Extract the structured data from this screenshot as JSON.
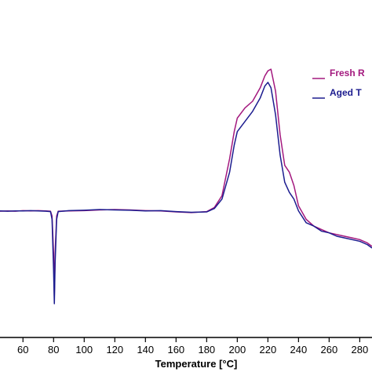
{
  "chart_data": {
    "type": "line",
    "x_label": "Temperature [°C]",
    "x": [
      45,
      50,
      55,
      60,
      65,
      70,
      75,
      78,
      79,
      80,
      80.5,
      81,
      82,
      83,
      90,
      100,
      110,
      120,
      130,
      140,
      150,
      160,
      170,
      180,
      185,
      190,
      195,
      198,
      200,
      205,
      210,
      215,
      218,
      220,
      222,
      225,
      228,
      231,
      234,
      237,
      240,
      245,
      250,
      255,
      260,
      265,
      270,
      275,
      280,
      285,
      288
    ],
    "series": [
      {
        "name": "Fresh R",
        "color": "#a3187e",
        "values": [
          37.4,
          37.5,
          37.4,
          37.6,
          37.5,
          37.6,
          37.5,
          37.4,
          36,
          25,
          12,
          25,
          36,
          37.4,
          37.5,
          37.6,
          37.8,
          37.9,
          37.8,
          37.6,
          37.5,
          37.2,
          37.0,
          37.3,
          38.5,
          42,
          53,
          61,
          65,
          68,
          70,
          74,
          77.5,
          79,
          79.5,
          73,
          60,
          51,
          49,
          45,
          39,
          35,
          33,
          32,
          31,
          30.5,
          30,
          29.5,
          29,
          28,
          27
        ]
      },
      {
        "name": "Aged T",
        "color": "#1c1c8f",
        "values": [
          37.5,
          37.4,
          37.5,
          37.5,
          37.6,
          37.5,
          37.4,
          37.3,
          35,
          20,
          10,
          22,
          35,
          37.3,
          37.6,
          37.7,
          37.9,
          37.8,
          37.7,
          37.5,
          37.6,
          37.3,
          37.1,
          37.2,
          38.2,
          41,
          49,
          57,
          61,
          64,
          67,
          71,
          74.5,
          75.6,
          74,
          66,
          54,
          46,
          43,
          41,
          37.5,
          34,
          33,
          31.5,
          31,
          30,
          29.5,
          29,
          28.5,
          27.5,
          26.5
        ]
      }
    ],
    "xlim": [
      45,
      288
    ],
    "xticks": [
      60,
      80,
      100,
      120,
      140,
      160,
      180,
      200,
      220,
      240,
      260,
      280
    ],
    "ylim": [
      0,
      100
    ]
  }
}
